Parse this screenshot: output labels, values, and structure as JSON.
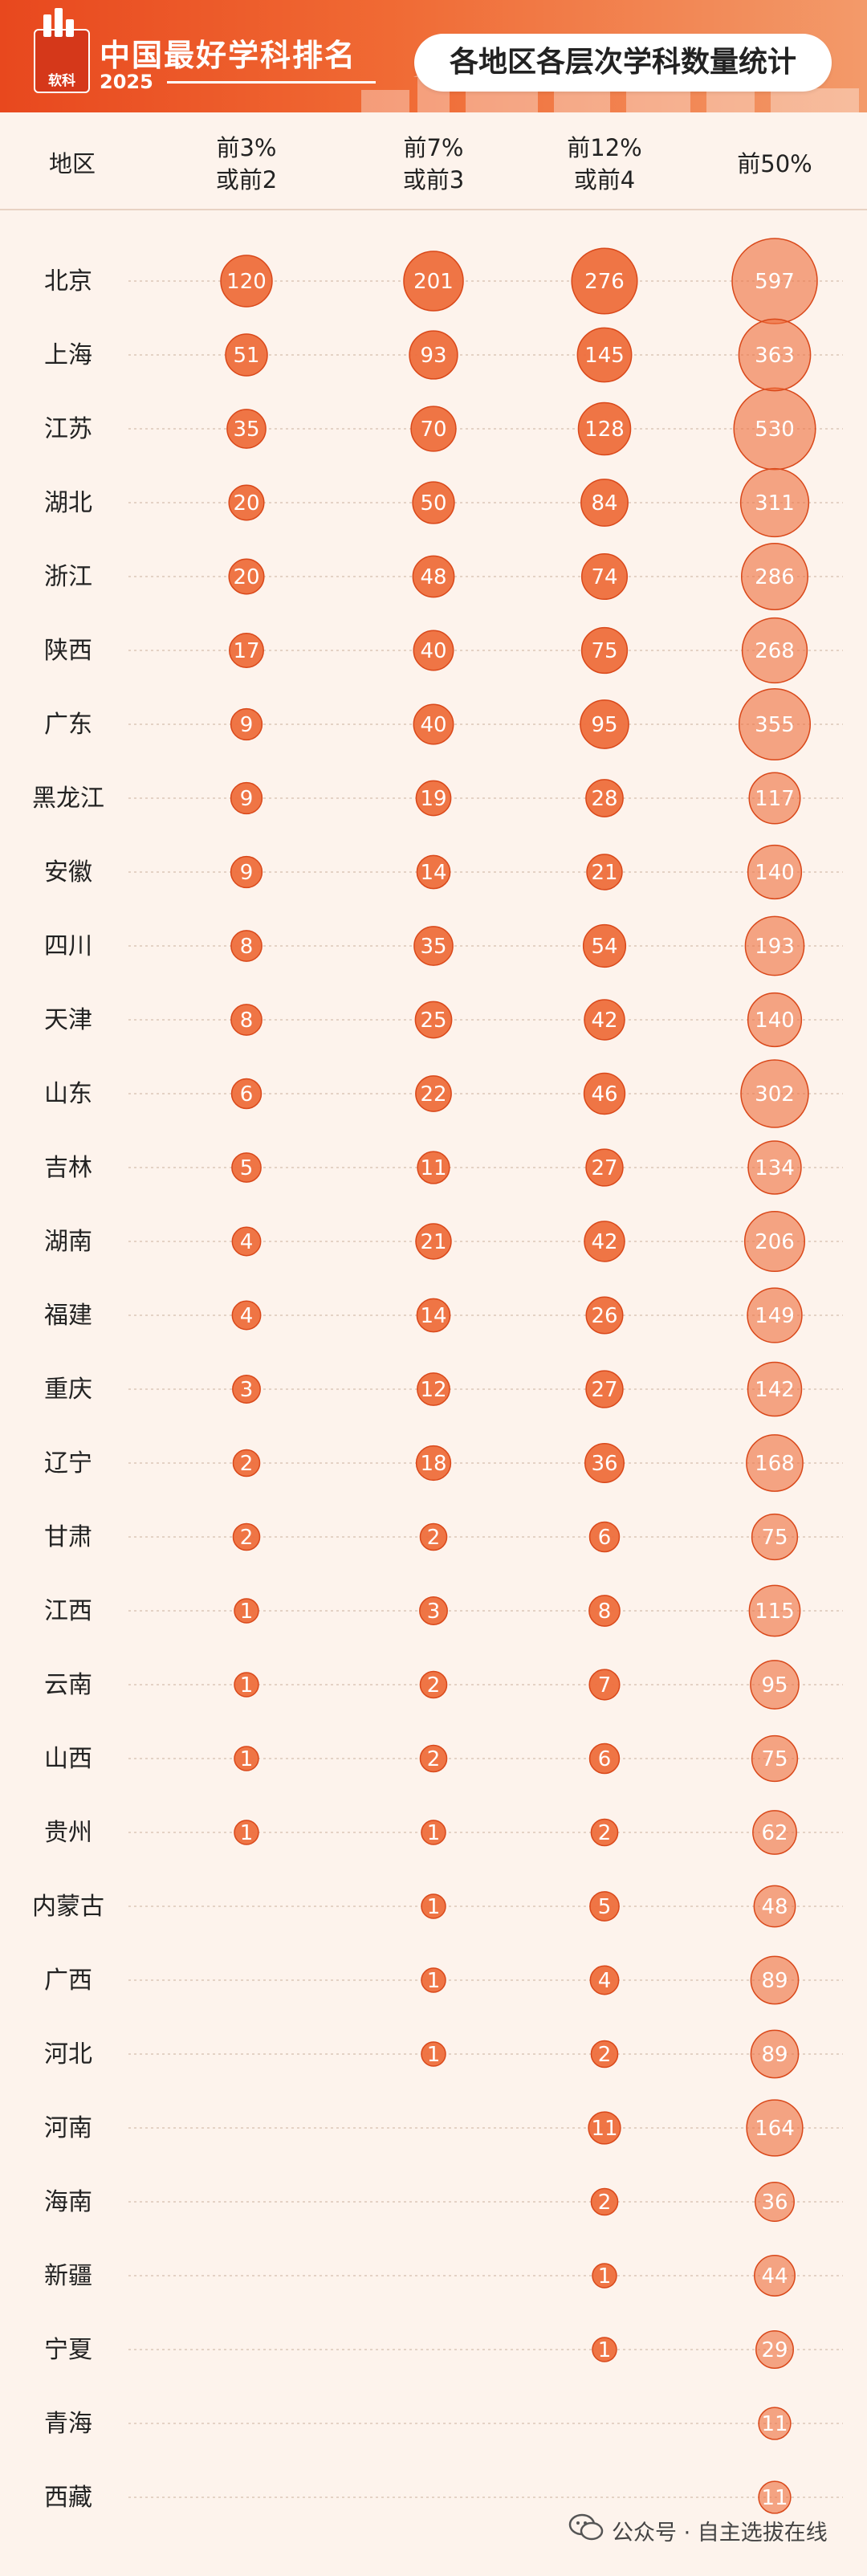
{
  "header": {
    "logo_text": "软科",
    "brand_title": "中国最好学科排名",
    "brand_year": "2025",
    "main_title": "各地区各层次学科数量统计"
  },
  "colors": {
    "header_accent": "#ee5a28",
    "bubble": "#ee6e3c",
    "bubble_border": "#d9481a",
    "background": "#fdf3ec"
  },
  "watermark": {
    "text": "公众号 · 自主选拔在线",
    "icon": "wechat-icon"
  },
  "chart_data": {
    "type": "bubble-table",
    "title": "各地区各层次学科数量统计",
    "row_header": "地区",
    "columns": [
      {
        "line1": "前3%",
        "line2": "或前2"
      },
      {
        "line1": "前7%",
        "line2": "或前3"
      },
      {
        "line1": "前12%",
        "line2": "或前4"
      },
      {
        "line1": "前50%",
        "line2": ""
      }
    ],
    "regions": [
      "北京",
      "上海",
      "江苏",
      "湖北",
      "浙江",
      "陕西",
      "广东",
      "黑龙江",
      "安徽",
      "四川",
      "天津",
      "山东",
      "吉林",
      "湖南",
      "福建",
      "重庆",
      "辽宁",
      "甘肃",
      "江西",
      "云南",
      "山西",
      "贵州",
      "内蒙古",
      "广西",
      "河北",
      "河南",
      "海南",
      "新疆",
      "宁夏",
      "青海",
      "西藏"
    ],
    "values": [
      [
        120,
        201,
        276,
        597
      ],
      [
        51,
        93,
        145,
        363
      ],
      [
        35,
        70,
        128,
        530
      ],
      [
        20,
        50,
        84,
        311
      ],
      [
        20,
        48,
        74,
        286
      ],
      [
        17,
        40,
        75,
        268
      ],
      [
        9,
        40,
        95,
        355
      ],
      [
        9,
        19,
        28,
        117
      ],
      [
        9,
        14,
        21,
        140
      ],
      [
        8,
        35,
        54,
        193
      ],
      [
        8,
        25,
        42,
        140
      ],
      [
        6,
        22,
        46,
        302
      ],
      [
        5,
        11,
        27,
        134
      ],
      [
        4,
        21,
        42,
        206
      ],
      [
        4,
        14,
        26,
        149
      ],
      [
        3,
        12,
        27,
        142
      ],
      [
        2,
        18,
        36,
        168
      ],
      [
        2,
        2,
        6,
        75
      ],
      [
        1,
        3,
        8,
        115
      ],
      [
        1,
        2,
        7,
        95
      ],
      [
        1,
        2,
        6,
        75
      ],
      [
        1,
        1,
        2,
        62
      ],
      [
        null,
        1,
        5,
        48
      ],
      [
        null,
        1,
        4,
        89
      ],
      [
        null,
        1,
        2,
        89
      ],
      [
        null,
        null,
        11,
        164
      ],
      [
        null,
        null,
        2,
        36
      ],
      [
        null,
        null,
        1,
        44
      ],
      [
        null,
        null,
        1,
        29
      ],
      [
        null,
        null,
        null,
        11
      ],
      [
        null,
        null,
        null,
        11
      ]
    ]
  }
}
